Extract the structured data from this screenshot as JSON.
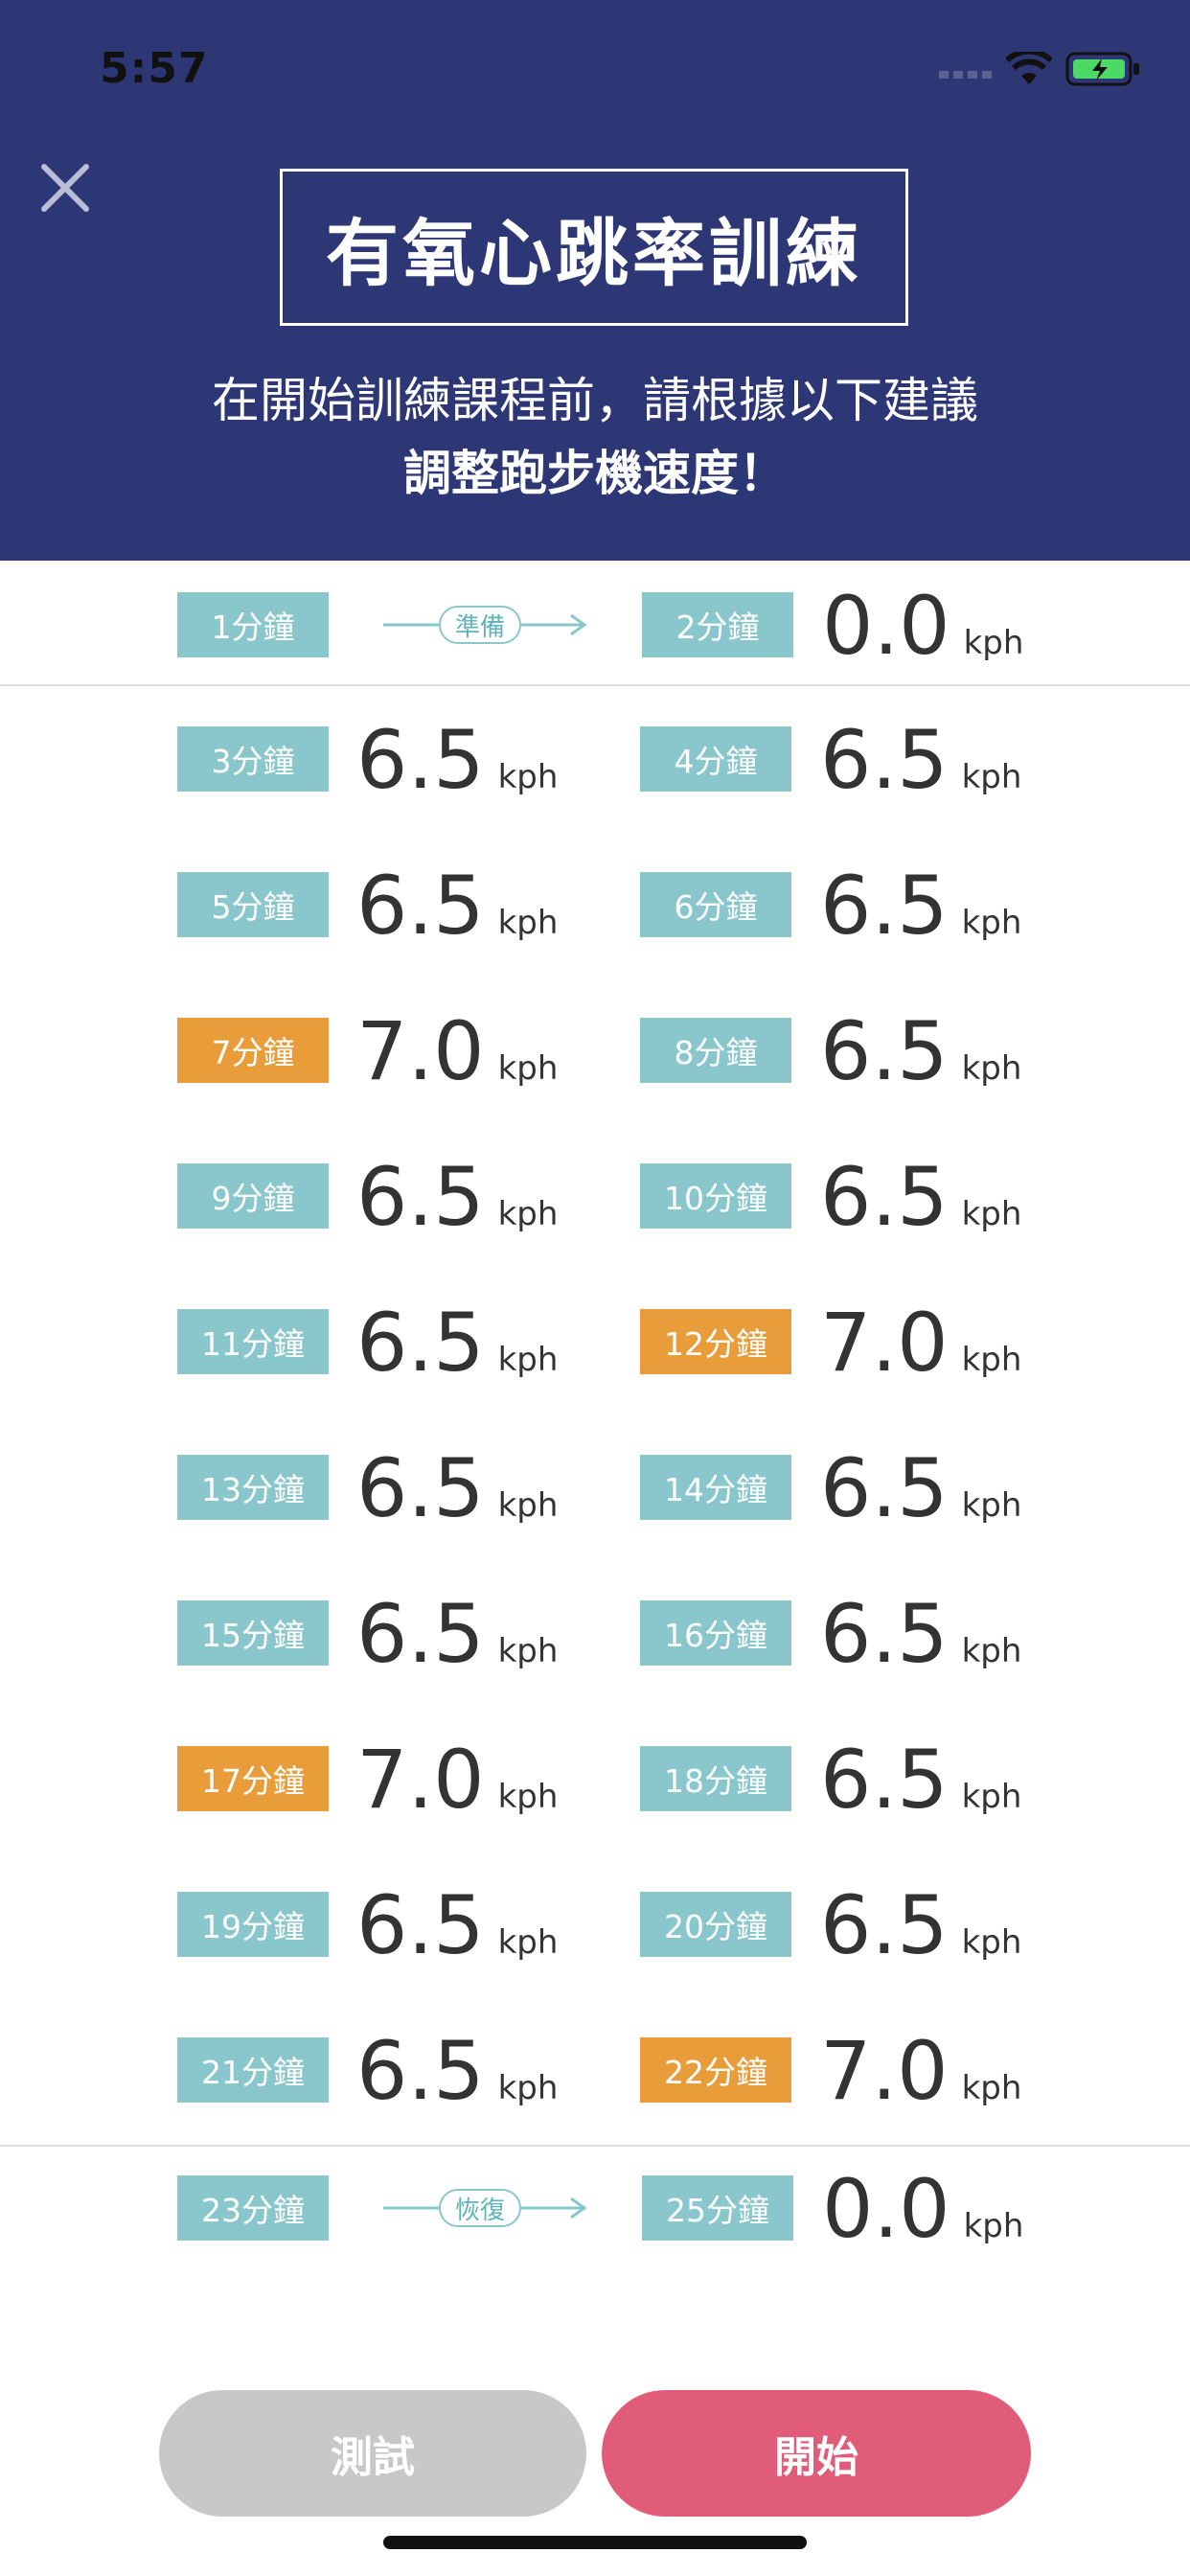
{
  "status_bar": {
    "time": "5:57"
  },
  "header": {
    "title": "有氧心跳率訓練",
    "subtitle_line1": "在開始訓練課程前，請根據以下建議",
    "subtitle_line2": "調整跑步機速度！"
  },
  "colors": {
    "header_bg": "#2e3776",
    "badge_teal": "#8ac7cc",
    "badge_orange": "#e99d3a",
    "start_button": "#e05c78",
    "test_button": "#c8c8c8"
  },
  "unit": "kph",
  "warmup": {
    "start_label": "1分鐘",
    "phase_label": "準備",
    "end_label": "2分鐘",
    "speed": "0.0"
  },
  "intervals": [
    {
      "left": {
        "label": "3分鐘",
        "speed": "6.5",
        "highlight": false
      },
      "right": {
        "label": "4分鐘",
        "speed": "6.5",
        "highlight": false
      }
    },
    {
      "left": {
        "label": "5分鐘",
        "speed": "6.5",
        "highlight": false
      },
      "right": {
        "label": "6分鐘",
        "speed": "6.5",
        "highlight": false
      }
    },
    {
      "left": {
        "label": "7分鐘",
        "speed": "7.0",
        "highlight": true
      },
      "right": {
        "label": "8分鐘",
        "speed": "6.5",
        "highlight": false
      }
    },
    {
      "left": {
        "label": "9分鐘",
        "speed": "6.5",
        "highlight": false
      },
      "right": {
        "label": "10分鐘",
        "speed": "6.5",
        "highlight": false
      }
    },
    {
      "left": {
        "label": "11分鐘",
        "speed": "6.5",
        "highlight": false
      },
      "right": {
        "label": "12分鐘",
        "speed": "7.0",
        "highlight": true
      }
    },
    {
      "left": {
        "label": "13分鐘",
        "speed": "6.5",
        "highlight": false
      },
      "right": {
        "label": "14分鐘",
        "speed": "6.5",
        "highlight": false
      }
    },
    {
      "left": {
        "label": "15分鐘",
        "speed": "6.5",
        "highlight": false
      },
      "right": {
        "label": "16分鐘",
        "speed": "6.5",
        "highlight": false
      }
    },
    {
      "left": {
        "label": "17分鐘",
        "speed": "7.0",
        "highlight": true
      },
      "right": {
        "label": "18分鐘",
        "speed": "6.5",
        "highlight": false
      }
    },
    {
      "left": {
        "label": "19分鐘",
        "speed": "6.5",
        "highlight": false
      },
      "right": {
        "label": "20分鐘",
        "speed": "6.5",
        "highlight": false
      }
    },
    {
      "left": {
        "label": "21分鐘",
        "speed": "6.5",
        "highlight": false
      },
      "right": {
        "label": "22分鐘",
        "speed": "7.0",
        "highlight": true
      }
    }
  ],
  "cooldown": {
    "start_label": "23分鐘",
    "phase_label": "恢復",
    "end_label": "25分鐘",
    "speed": "0.0"
  },
  "buttons": {
    "test": "測試",
    "start": "開始"
  },
  "icons": {
    "close": "close-icon",
    "signal": "cellular-signal-icon",
    "wifi": "wifi-icon",
    "battery": "battery-charging-icon"
  }
}
